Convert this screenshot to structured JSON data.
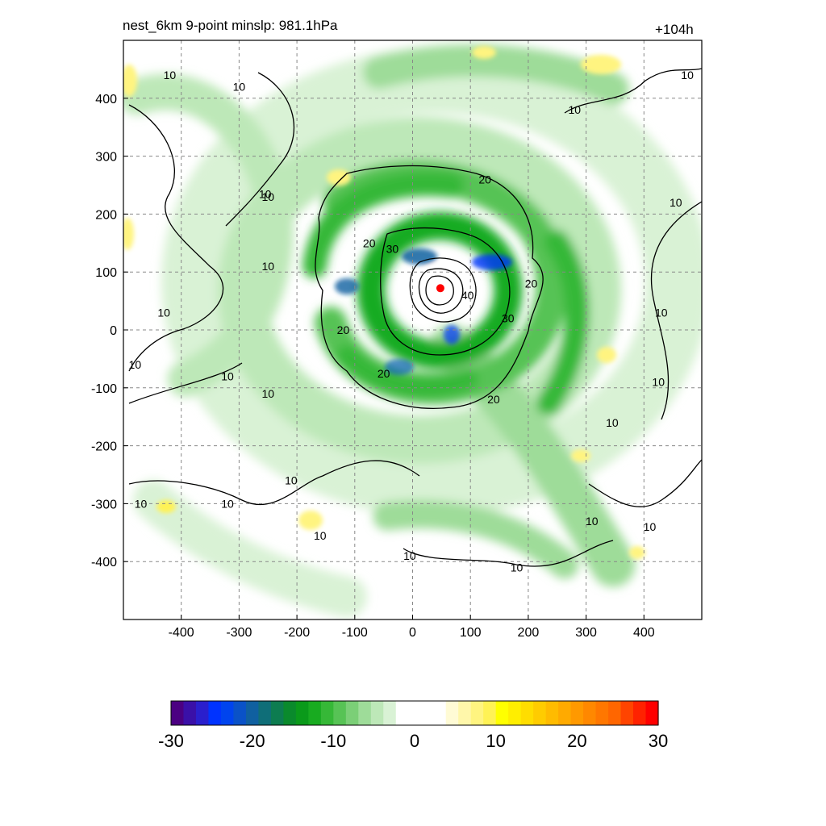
{
  "chart_data": {
    "type": "heatmap",
    "title_left": "nest_6km  9-point minslp: 981.1hPa",
    "title_right": "+104h",
    "xlim": [
      -500,
      500
    ],
    "ylim": [
      -500,
      500
    ],
    "x_ticks": [
      -400,
      -300,
      -200,
      -100,
      0,
      100,
      200,
      300,
      400
    ],
    "y_ticks": [
      -400,
      -300,
      -200,
      -100,
      0,
      100,
      200,
      300,
      400
    ],
    "grid": true,
    "center_marker": {
      "x": 48,
      "y": 72,
      "color": "#ff0000"
    },
    "contour_levels": [
      10,
      20,
      30,
      40
    ],
    "contour_labels": [
      {
        "text": "10",
        "x": -420,
        "y": 440
      },
      {
        "text": "10",
        "x": -300,
        "y": 420
      },
      {
        "text": "10",
        "x": -255,
        "y": 235
      },
      {
        "text": "10",
        "x": -250,
        "y": 110
      },
      {
        "text": "10",
        "x": -430,
        "y": 30
      },
      {
        "text": "10",
        "x": -480,
        "y": -60
      },
      {
        "text": "10",
        "x": -320,
        "y": -80
      },
      {
        "text": "10",
        "x": -250,
        "y": -110
      },
      {
        "text": "10",
        "x": -470,
        "y": -300
      },
      {
        "text": "10",
        "x": -320,
        "y": -300
      },
      {
        "text": "10",
        "x": -160,
        "y": -355
      },
      {
        "text": "10",
        "x": -210,
        "y": -260
      },
      {
        "text": "10",
        "x": -5,
        "y": -390
      },
      {
        "text": "10",
        "x": 180,
        "y": -410
      },
      {
        "text": "10",
        "x": 310,
        "y": -330
      },
      {
        "text": "10",
        "x": 410,
        "y": -340
      },
      {
        "text": "10",
        "x": 345,
        "y": -160
      },
      {
        "text": "10",
        "x": 425,
        "y": -90
      },
      {
        "text": "10",
        "x": 430,
        "y": 30
      },
      {
        "text": "10",
        "x": 455,
        "y": 220
      },
      {
        "text": "10",
        "x": 475,
        "y": 440
      },
      {
        "text": "10",
        "x": 280,
        "y": 380
      },
      {
        "text": "10",
        "x": -250,
        "y": 230
      },
      {
        "text": "20",
        "x": 125,
        "y": 260
      },
      {
        "text": "20",
        "x": -75,
        "y": 150
      },
      {
        "text": "20",
        "x": -120,
        "y": 0
      },
      {
        "text": "20",
        "x": -50,
        "y": -75
      },
      {
        "text": "20",
        "x": 140,
        "y": -120
      },
      {
        "text": "20",
        "x": 205,
        "y": 80
      },
      {
        "text": "30",
        "x": -35,
        "y": 140
      },
      {
        "text": "30",
        "x": 165,
        "y": 20
      },
      {
        "text": "40",
        "x": 95,
        "y": 60
      }
    ],
    "colorbar": {
      "ticks": [
        -30,
        -20,
        -10,
        0,
        10,
        20,
        30
      ],
      "range": [
        -30,
        30
      ],
      "colors": [
        "#4b0082",
        "#3a10a8",
        "#2a1fcd",
        "#0033ff",
        "#0044ee",
        "#0a52c8",
        "#1060a0",
        "#0f6e78",
        "#0d7c50",
        "#0a8a2c",
        "#0a9a1a",
        "#18ab20",
        "#36b837",
        "#57c355",
        "#7bcf77",
        "#9edc99",
        "#bde8b8",
        "#d9f2d5",
        "#ffffff",
        "#ffffff",
        "#ffffff",
        "#ffffff",
        "#fffbd5",
        "#fff7aa",
        "#fff480",
        "#fff255",
        "#ffff00",
        "#ffee00",
        "#ffdd00",
        "#ffcc00",
        "#ffbb00",
        "#ffaa00",
        "#ff9900",
        "#ff8800",
        "#ff7700",
        "#ff6600",
        "#ff4400",
        "#ff2200",
        "#ff0000"
      ]
    }
  }
}
